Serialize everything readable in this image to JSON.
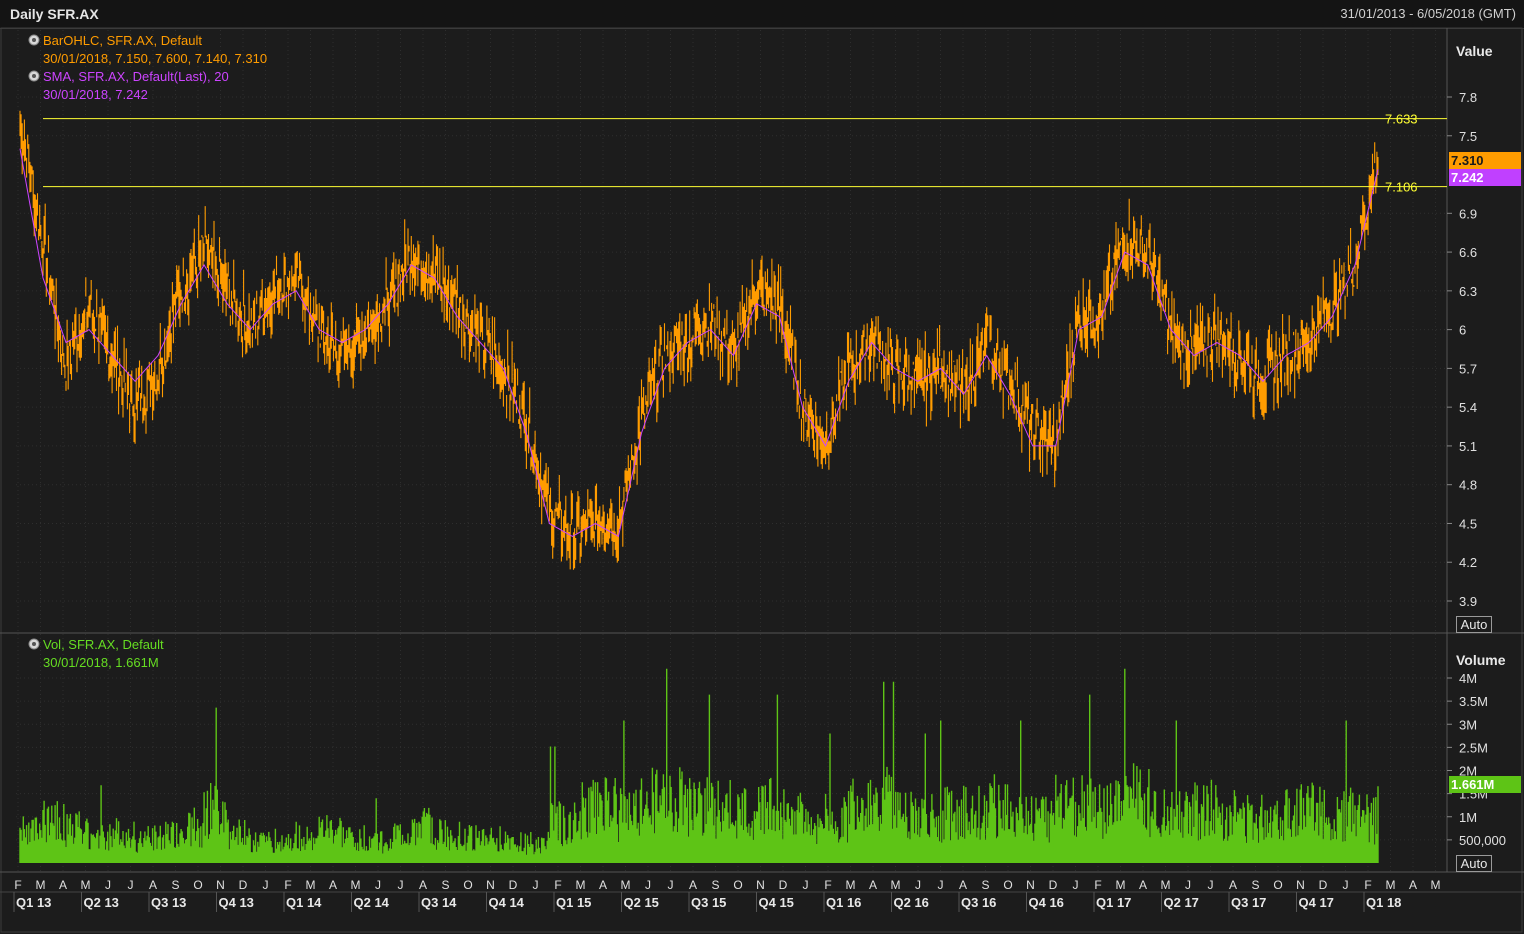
{
  "window": {
    "title": "Daily SFR.AX",
    "date_range": "31/01/2013 - 6/05/2018 (GMT)"
  },
  "price_panel": {
    "axis_title": "Value",
    "auto_label": "Auto",
    "legend": [
      {
        "name": "BarOHLC, SFR.AX, Default",
        "values": "30/01/2018, 7.150, 7.600, 7.140, 7.310",
        "color": "#ff9c00"
      },
      {
        "name": "SMA, SFR.AX, Default(Last),  20",
        "values": "30/01/2018, 7.242",
        "color": "#cc44ff"
      }
    ],
    "last_price_badge": "7.310",
    "sma_badge": "7.242",
    "hlines": [
      {
        "label": "7.633",
        "value": 7.633,
        "color": "#ffff33"
      },
      {
        "label": "7.106",
        "value": 7.106,
        "color": "#ffff33"
      }
    ]
  },
  "volume_panel": {
    "axis_title": "Volume",
    "auto_label": "Auto",
    "legend": [
      {
        "name": "Vol, SFR.AX, Default",
        "values": "30/01/2018, 1.661M",
        "color": "#66dd22"
      }
    ],
    "last_volume_badge": "1.661M"
  },
  "x_axis": {
    "months": [
      "F",
      "M",
      "A",
      "M",
      "J",
      "J",
      "A",
      "S",
      "O",
      "N",
      "D",
      "J",
      "F",
      "M",
      "A",
      "M",
      "J",
      "J",
      "A",
      "S",
      "O",
      "N",
      "D",
      "J",
      "F",
      "M",
      "A",
      "M",
      "J",
      "J",
      "A",
      "S",
      "O",
      "N",
      "D",
      "J",
      "F",
      "M",
      "A",
      "M",
      "J",
      "J",
      "A",
      "S",
      "O",
      "N",
      "D",
      "J",
      "F",
      "M",
      "A",
      "M",
      "J",
      "J",
      "A",
      "S",
      "O",
      "N",
      "D",
      "J",
      "F",
      "M",
      "A",
      "M"
    ],
    "quarters": [
      "Q1 13",
      "Q2 13",
      "Q3 13",
      "Q4 13",
      "Q1 14",
      "Q2 14",
      "Q3 14",
      "Q4 14",
      "Q1 15",
      "Q2 15",
      "Q3 15",
      "Q4 15",
      "Q1 16",
      "Q2 16",
      "Q3 16",
      "Q4 16",
      "Q1 17",
      "Q2 17",
      "Q3 17",
      "Q4 17",
      "Q1 18"
    ]
  },
  "chart_data": [
    {
      "type": "line",
      "series_kind": "ohlc-bars + sma",
      "y_axis": {
        "ticks": [
          {
            "label": "7.8",
            "value": 7.8
          },
          {
            "label": "7.5",
            "value": 7.5
          },
          {
            "label": "6.9",
            "value": 6.9
          },
          {
            "label": "6.6",
            "value": 6.6
          },
          {
            "label": "6.3",
            "value": 6.3
          },
          {
            "label": "6",
            "value": 6.0
          },
          {
            "label": "5.7",
            "value": 5.7
          },
          {
            "label": "5.4",
            "value": 5.4
          },
          {
            "label": "5.1",
            "value": 5.1
          },
          {
            "label": "4.8",
            "value": 4.8
          },
          {
            "label": "4.5",
            "value": 4.5
          },
          {
            "label": "4.2",
            "value": 4.2
          },
          {
            "label": "3.9",
            "value": 3.9
          }
        ]
      },
      "x": [
        "2013-02",
        "2013-03",
        "2013-04",
        "2013-05",
        "2013-06",
        "2013-07",
        "2013-08",
        "2013-09",
        "2013-10",
        "2013-11",
        "2013-12",
        "2014-01",
        "2014-02",
        "2014-03",
        "2014-04",
        "2014-05",
        "2014-06",
        "2014-07",
        "2014-08",
        "2014-09",
        "2014-10",
        "2014-11",
        "2014-12",
        "2015-01",
        "2015-02",
        "2015-03",
        "2015-04",
        "2015-05",
        "2015-06",
        "2015-07",
        "2015-08",
        "2015-09",
        "2015-10",
        "2015-11",
        "2015-12",
        "2016-01",
        "2016-02",
        "2016-03",
        "2016-04",
        "2016-05",
        "2016-06",
        "2016-07",
        "2016-08",
        "2016-09",
        "2016-10",
        "2016-11",
        "2016-12",
        "2017-01",
        "2017-02",
        "2017-03",
        "2017-04",
        "2017-05",
        "2017-06",
        "2017-07",
        "2017-08",
        "2017-09",
        "2017-10",
        "2017-11",
        "2017-12",
        "2018-01"
      ],
      "series": [
        {
          "values": [
            7.6,
            6.7,
            5.7,
            6.2,
            5.8,
            5.4,
            5.7,
            6.3,
            6.6,
            6.3,
            6.0,
            6.3,
            6.4,
            6.0,
            5.8,
            6.0,
            6.2,
            6.6,
            6.4,
            6.2,
            5.9,
            5.7,
            5.3,
            4.6,
            4.4,
            4.5,
            4.5,
            5.3,
            5.8,
            5.9,
            6.1,
            5.8,
            6.3,
            6.2,
            5.4,
            5.1,
            5.7,
            5.9,
            5.7,
            5.6,
            5.7,
            5.5,
            5.9,
            5.6,
            5.2,
            5.1,
            6.1,
            6.1,
            6.7,
            6.6,
            6.0,
            5.8,
            6.0,
            5.8,
            5.6,
            5.8,
            5.9,
            6.2,
            6.5,
            7.3
          ]
        },
        {
          "values": [
            7.4,
            6.4,
            5.9,
            6.0,
            5.8,
            5.6,
            5.8,
            6.2,
            6.5,
            6.2,
            6.0,
            6.2,
            6.3,
            6.0,
            5.9,
            6.0,
            6.2,
            6.5,
            6.4,
            6.1,
            5.9,
            5.7,
            5.2,
            4.5,
            4.4,
            4.5,
            4.4,
            5.2,
            5.7,
            5.9,
            6.0,
            5.8,
            6.2,
            6.1,
            5.4,
            5.1,
            5.6,
            5.9,
            5.7,
            5.6,
            5.7,
            5.5,
            5.8,
            5.5,
            5.1,
            5.1,
            6.0,
            6.1,
            6.6,
            6.5,
            6.0,
            5.8,
            5.9,
            5.8,
            5.6,
            5.8,
            5.9,
            6.1,
            6.5,
            7.24
          ]
        }
      ]
    },
    {
      "type": "bar",
      "series_kind": "volume",
      "y_axis": {
        "ticks": [
          {
            "label": "4M",
            "value": 4000000
          },
          {
            "label": "3.5M",
            "value": 3500000
          },
          {
            "label": "3M",
            "value": 3000000
          },
          {
            "label": "2.5M",
            "value": 2500000
          },
          {
            "label": "2M",
            "value": 2000000
          },
          {
            "label": "1.5M",
            "value": 1500000
          },
          {
            "label": "1M",
            "value": 1000000
          },
          {
            "label": "500,000",
            "value": 500000
          }
        ]
      },
      "x": [
        "2013-02",
        "2013-03",
        "2013-04",
        "2013-05",
        "2013-06",
        "2013-07",
        "2013-08",
        "2013-09",
        "2013-10",
        "2013-11",
        "2013-12",
        "2014-01",
        "2014-02",
        "2014-03",
        "2014-04",
        "2014-05",
        "2014-06",
        "2014-07",
        "2014-08",
        "2014-09",
        "2014-10",
        "2014-11",
        "2014-12",
        "2015-01",
        "2015-02",
        "2015-03",
        "2015-04",
        "2015-05",
        "2015-06",
        "2015-07",
        "2015-08",
        "2015-09",
        "2015-10",
        "2015-11",
        "2015-12",
        "2016-01",
        "2016-02",
        "2016-03",
        "2016-04",
        "2016-05",
        "2016-06",
        "2016-07",
        "2016-08",
        "2016-09",
        "2016-10",
        "2016-11",
        "2016-12",
        "2017-01",
        "2017-02",
        "2017-03",
        "2017-04",
        "2017-05",
        "2017-06",
        "2017-07",
        "2017-08",
        "2017-09",
        "2017-10",
        "2017-11",
        "2017-12",
        "2018-01"
      ],
      "values": [
        700000,
        1000000,
        750000,
        600000,
        650000,
        550000,
        600000,
        800000,
        1200000,
        700000,
        500000,
        500000,
        600000,
        700000,
        550000,
        500000,
        600000,
        800000,
        650000,
        600000,
        550000,
        500000,
        450000,
        900000,
        1200000,
        1300000,
        1100000,
        1400000,
        1500000,
        1300000,
        1200000,
        1100000,
        1300000,
        1200000,
        900000,
        1000000,
        1300000,
        1400000,
        1100000,
        1000000,
        1100000,
        1200000,
        1300000,
        1100000,
        1000000,
        1400000,
        1300000,
        1200000,
        1500000,
        1400000,
        1100000,
        1200000,
        1100000,
        1000000,
        1100000,
        1200000,
        1200000,
        1100000,
        1000000,
        1661000
      ]
    }
  ]
}
